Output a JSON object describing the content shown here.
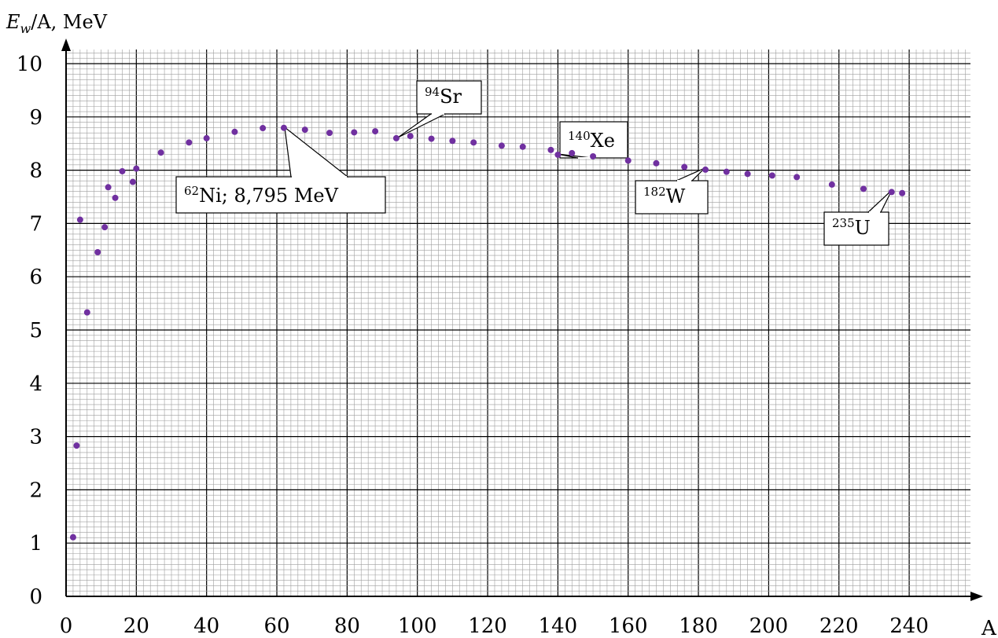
{
  "chart_data": {
    "type": "scatter",
    "ylabel": {
      "symbol": "E",
      "subscript": "w",
      "rest": "/A, MeV"
    },
    "xlabel": "A",
    "xlim": [
      0,
      240
    ],
    "ylim": [
      0,
      10
    ],
    "x_ticks": [
      0,
      20,
      40,
      60,
      80,
      100,
      120,
      140,
      160,
      180,
      200,
      220,
      240
    ],
    "y_ticks": [
      0,
      1,
      2,
      3,
      4,
      5,
      6,
      7,
      8,
      9,
      10
    ],
    "grid": "on",
    "marker_color": "#7030a0",
    "points": [
      {
        "x": 2,
        "y": 1.11
      },
      {
        "x": 3,
        "y": 2.83
      },
      {
        "x": 4,
        "y": 7.07
      },
      {
        "x": 6,
        "y": 5.33
      },
      {
        "x": 9,
        "y": 6.46
      },
      {
        "x": 11,
        "y": 6.93
      },
      {
        "x": 12,
        "y": 7.68
      },
      {
        "x": 14,
        "y": 7.48
      },
      {
        "x": 16,
        "y": 7.98
      },
      {
        "x": 19,
        "y": 7.78
      },
      {
        "x": 20,
        "y": 8.03
      },
      {
        "x": 27,
        "y": 8.33
      },
      {
        "x": 35,
        "y": 8.52
      },
      {
        "x": 40,
        "y": 8.6
      },
      {
        "x": 48,
        "y": 8.72
      },
      {
        "x": 56,
        "y": 8.79
      },
      {
        "x": 62,
        "y": 8.795
      },
      {
        "x": 68,
        "y": 8.76
      },
      {
        "x": 75,
        "y": 8.7
      },
      {
        "x": 82,
        "y": 8.71
      },
      {
        "x": 88,
        "y": 8.73
      },
      {
        "x": 94,
        "y": 8.6
      },
      {
        "x": 98,
        "y": 8.64
      },
      {
        "x": 104,
        "y": 8.59
      },
      {
        "x": 110,
        "y": 8.55
      },
      {
        "x": 116,
        "y": 8.52
      },
      {
        "x": 124,
        "y": 8.46
      },
      {
        "x": 130,
        "y": 8.44
      },
      {
        "x": 138,
        "y": 8.38
      },
      {
        "x": 140,
        "y": 8.29
      },
      {
        "x": 144,
        "y": 8.32
      },
      {
        "x": 150,
        "y": 8.26
      },
      {
        "x": 160,
        "y": 8.18
      },
      {
        "x": 168,
        "y": 8.13
      },
      {
        "x": 176,
        "y": 8.06
      },
      {
        "x": 182,
        "y": 8.01
      },
      {
        "x": 188,
        "y": 7.97
      },
      {
        "x": 194,
        "y": 7.93
      },
      {
        "x": 201,
        "y": 7.9
      },
      {
        "x": 208,
        "y": 7.87
      },
      {
        "x": 218,
        "y": 7.73
      },
      {
        "x": 227,
        "y": 7.65
      },
      {
        "x": 235,
        "y": 7.59
      },
      {
        "x": 238,
        "y": 7.57
      }
    ],
    "annotations": [
      {
        "mass": "62",
        "element": "Ni",
        "suffix": "; 8,795 MeV",
        "x": 62,
        "y": 8.795
      },
      {
        "mass": "94",
        "element": "Sr",
        "suffix": "",
        "x": 94,
        "y": 8.6
      },
      {
        "mass": "140",
        "element": "Xe",
        "suffix": "",
        "x": 140,
        "y": 8.29
      },
      {
        "mass": "182",
        "element": "W",
        "suffix": "",
        "x": 182,
        "y": 8.01
      },
      {
        "mass": "235",
        "element": "U",
        "suffix": "",
        "x": 235,
        "y": 7.59
      }
    ]
  }
}
